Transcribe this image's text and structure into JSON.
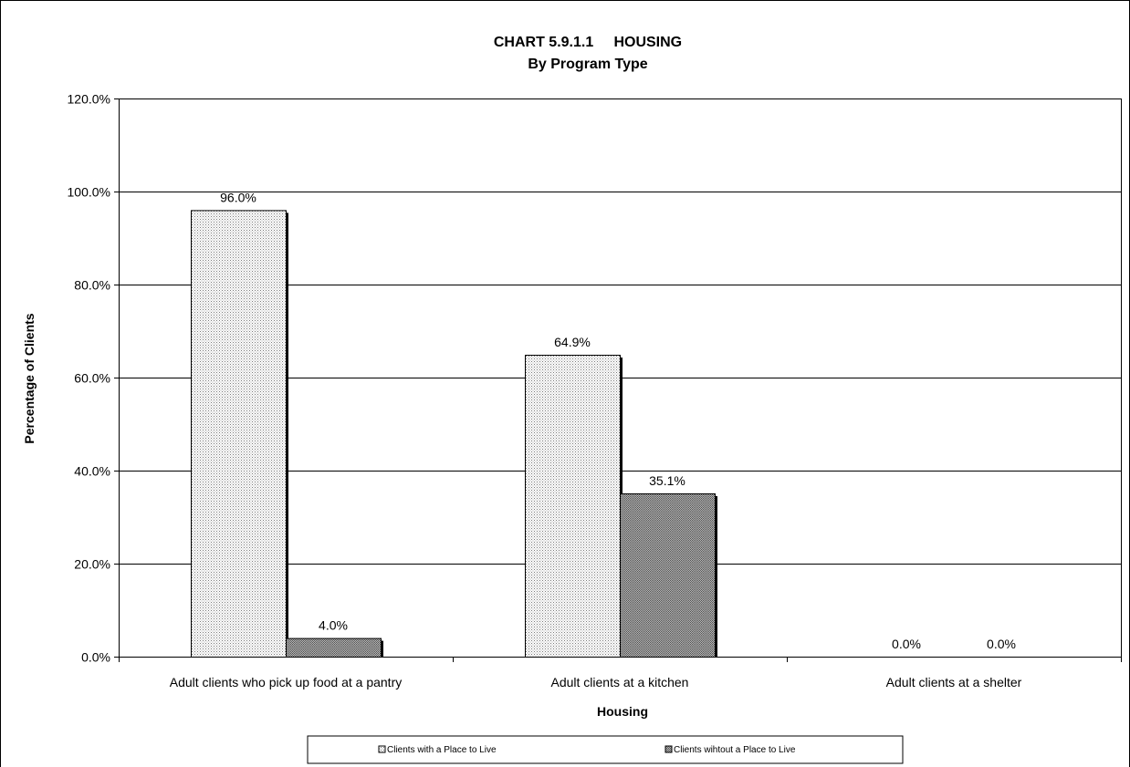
{
  "chart_data": {
    "type": "bar",
    "title": "CHART 5.9.1.1     HOUSING",
    "subtitle": "By Program Type",
    "xlabel": "Housing",
    "ylabel": "Percentage of Clients",
    "ylim": [
      0,
      120
    ],
    "ytick_labels": [
      "0.0%",
      "20.0%",
      "40.0%",
      "60.0%",
      "80.0%",
      "100.0%",
      "120.0%"
    ],
    "categories": [
      "Adult clients who pick up food at a pantry",
      "Adult clients at a kitchen",
      "Adult clients at a shelter"
    ],
    "series": [
      {
        "name": "Clients with a Place to Live",
        "values": [
          96.0,
          64.9,
          0.0
        ],
        "labels": [
          "96.0%",
          "64.9%",
          "0.0%"
        ],
        "fill": "dotted-light"
      },
      {
        "name": "Clients wihtout a Place to Live",
        "values": [
          4.0,
          35.1,
          0.0
        ],
        "labels": [
          "4.0%",
          "35.1%",
          "0.0%"
        ],
        "fill": "dotted-dark"
      }
    ],
    "grid": true,
    "legend_position": "bottom",
    "colors": {
      "axis": "#000000",
      "grid": "#000000",
      "bar_outline": "#000000",
      "background": "#ffffff"
    }
  }
}
